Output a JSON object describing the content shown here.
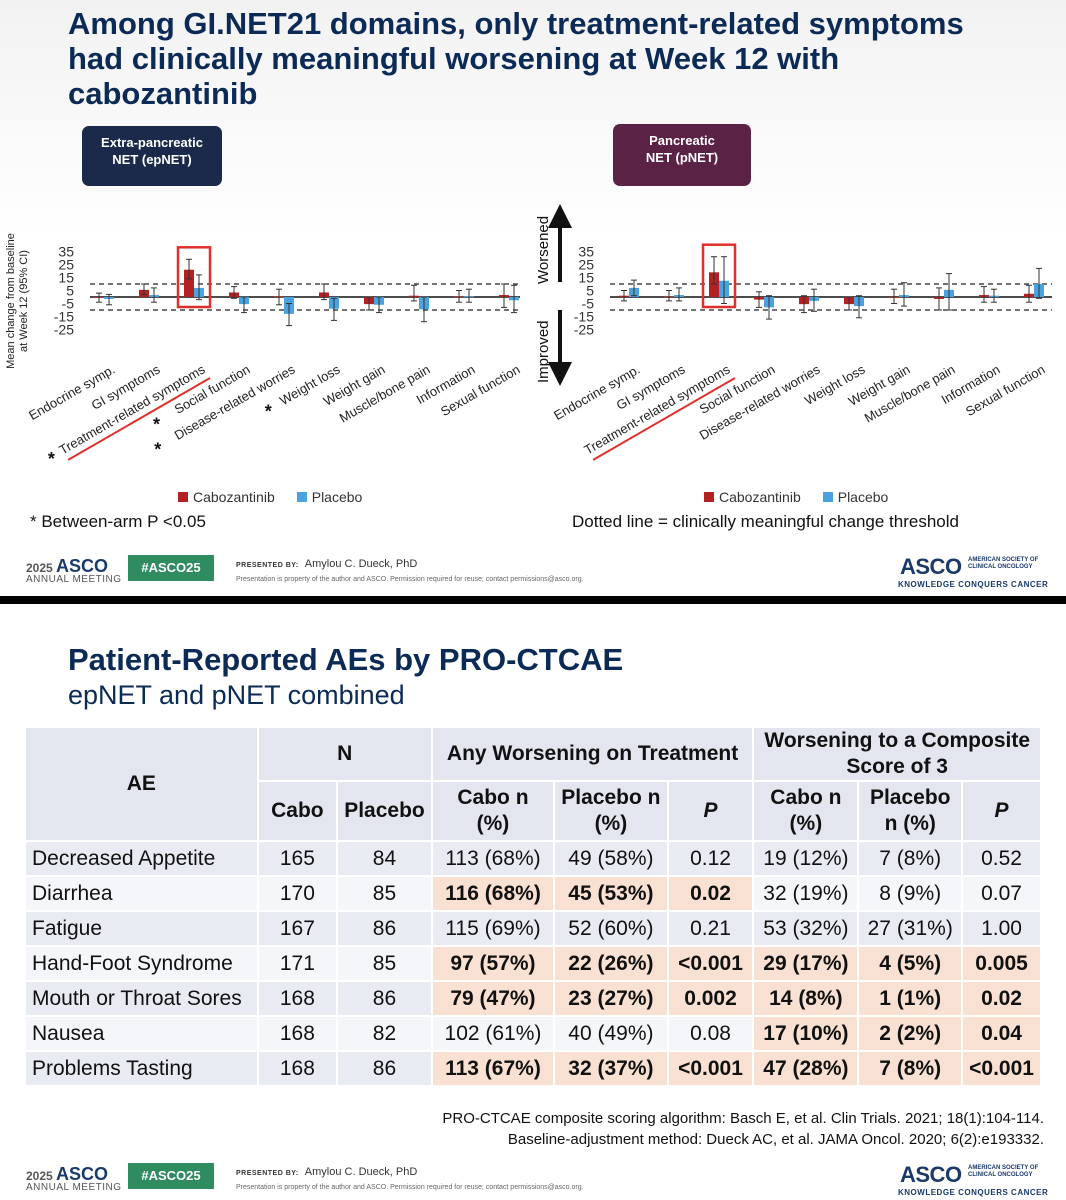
{
  "slide1": {
    "title": "Among GI.NET21 domains, only treatment-related symptoms had clinically meaningful worsening at Week 12 with cabozantinib",
    "ylabel_line1": "Mean change from baseline",
    "ylabel_line2": "at Week 12 (95% CI)",
    "worsened_label": "Worsened",
    "improved_label": "Improved",
    "legend_cabo": "Cabozantinib",
    "legend_placebo": "Placebo",
    "note_left": "* Between-arm P <0.05",
    "note_right": "Dotted line = clinically meaningful change threshold"
  },
  "chart_data": [
    {
      "type": "bar",
      "title": "Extra-pancreatic NET (epNET)",
      "title_line1": "Extra-pancreatic",
      "title_line2": "NET (epNET)",
      "categories": [
        "Endocrine symp.",
        "GI symptoms",
        "Treatment-related symptoms",
        "Social function",
        "Disease-related worries",
        "Weight loss",
        "Weight gain",
        "Muscle/bone pain",
        "Information",
        "Sexual function"
      ],
      "significant": [
        false,
        false,
        true,
        true,
        true,
        true,
        false,
        false,
        false,
        false
      ],
      "highlighted_category": "Treatment-related symptoms",
      "series": [
        {
          "name": "Cabozantinib",
          "color": "#b22222",
          "values": [
            -0.5,
            5.5,
            21,
            3.5,
            0.5,
            3.5,
            -5.5,
            1,
            0.5,
            1.5
          ],
          "ci_low": [
            -4,
            2,
            14,
            -1,
            -6,
            -2,
            -10,
            -3,
            -4,
            -8
          ],
          "ci_high": [
            3,
            10,
            29,
            8,
            6,
            10,
            0,
            9,
            5,
            10
          ]
        },
        {
          "name": "Placebo",
          "color": "#4aa3df",
          "values": [
            -1.5,
            1.5,
            7,
            -5.5,
            -13,
            -9,
            -6,
            -9.5,
            0.5,
            -2.5
          ],
          "ci_low": [
            -6,
            -4,
            -2,
            -12,
            -22,
            -18,
            -12,
            -19,
            -4,
            -12
          ],
          "ci_high": [
            2,
            7,
            17,
            0,
            -5,
            -1,
            0,
            0,
            6,
            9
          ]
        }
      ],
      "threshold": 10,
      "ylim": [
        -25,
        35
      ],
      "yticks": [
        35,
        25,
        15,
        5,
        -5,
        -15,
        -25
      ]
    },
    {
      "type": "bar",
      "title": "Pancreatic NET (pNET)",
      "title_line1": "Pancreatic",
      "title_line2": "NET (pNET)",
      "categories": [
        "Endocrine symp.",
        "GI symptoms",
        "Treatment-related symptoms",
        "Social function",
        "Disease-related worries",
        "Weight loss",
        "Weight gain",
        "Muscle/bone pain",
        "Information",
        "Sexual function"
      ],
      "highlighted_category": "Treatment-related symptoms",
      "series": [
        {
          "name": "Cabozantinib",
          "color": "#b22222",
          "values": [
            1,
            0.5,
            19,
            -2,
            -5.5,
            -5.5,
            -0.5,
            -1.5,
            1.5,
            2.5
          ],
          "ci_low": [
            -3,
            -3,
            10,
            -8,
            -12,
            -10,
            -5,
            -10,
            -4,
            -4
          ],
          "ci_high": [
            5,
            5,
            31,
            4,
            1,
            0,
            6,
            7,
            8,
            9
          ]
        },
        {
          "name": "Placebo",
          "color": "#4aa3df",
          "values": [
            7,
            1.5,
            12.5,
            -8,
            -3,
            -7,
            1.5,
            5.5,
            1,
            10
          ],
          "ci_low": [
            1,
            -3,
            -5,
            -17,
            -11,
            -16,
            -7,
            -10,
            -4,
            -1
          ],
          "ci_high": [
            13,
            7,
            31,
            1,
            6,
            1,
            11,
            18,
            6,
            22
          ]
        }
      ],
      "threshold": 10,
      "ylim": [
        -25,
        35
      ],
      "yticks": [
        35,
        25,
        15,
        5,
        -5,
        -15,
        -25
      ]
    }
  ],
  "slide2": {
    "title": "Patient-Reported AEs by PRO-CTCAE",
    "subtitle": "epNET and pNET combined",
    "headers": {
      "ae": "AE",
      "n": "N",
      "any": "Any Worsening on Treatment",
      "composite": "Worsening to a Composite Score of 3",
      "cabo": "Cabo",
      "placebo": "Placebo",
      "cabo_np": "Cabo n (%)",
      "placebo_np": "Placebo n (%)",
      "p": "P"
    },
    "rows": [
      {
        "ae": "Decreased Appetite",
        "n_cabo": "165",
        "n_pbo": "84",
        "any_cabo": "113 (68%)",
        "any_pbo": "49 (58%)",
        "any_p": "0.12",
        "comp_cabo": "19 (12%)",
        "comp_pbo": "7 (8%)",
        "comp_p": "0.52",
        "any_sig": false,
        "comp_sig": false
      },
      {
        "ae": "Diarrhea",
        "n_cabo": "170",
        "n_pbo": "85",
        "any_cabo": "116 (68%)",
        "any_pbo": "45 (53%)",
        "any_p": "0.02",
        "comp_cabo": "32 (19%)",
        "comp_pbo": "8 (9%)",
        "comp_p": "0.07",
        "any_sig": true,
        "comp_sig": false
      },
      {
        "ae": "Fatigue",
        "n_cabo": "167",
        "n_pbo": "86",
        "any_cabo": "115 (69%)",
        "any_pbo": "52 (60%)",
        "any_p": "0.21",
        "comp_cabo": "53 (32%)",
        "comp_pbo": "27 (31%)",
        "comp_p": "1.00",
        "any_sig": false,
        "comp_sig": false
      },
      {
        "ae": "Hand-Foot Syndrome",
        "n_cabo": "171",
        "n_pbo": "85",
        "any_cabo": "97 (57%)",
        "any_pbo": "22 (26%)",
        "any_p": "<0.001",
        "comp_cabo": "29 (17%)",
        "comp_pbo": "4 (5%)",
        "comp_p": "0.005",
        "any_sig": true,
        "comp_sig": true
      },
      {
        "ae": "Mouth or Throat Sores",
        "n_cabo": "168",
        "n_pbo": "86",
        "any_cabo": "79 (47%)",
        "any_pbo": "23 (27%)",
        "any_p": "0.002",
        "comp_cabo": "14 (8%)",
        "comp_pbo": "1 (1%)",
        "comp_p": "0.02",
        "any_sig": true,
        "comp_sig": true
      },
      {
        "ae": "Nausea",
        "n_cabo": "168",
        "n_pbo": "82",
        "any_cabo": "102 (61%)",
        "any_pbo": "40 (49%)",
        "any_p": "0.08",
        "comp_cabo": "17 (10%)",
        "comp_pbo": "2 (2%)",
        "comp_p": "0.04",
        "any_sig": false,
        "comp_sig": true
      },
      {
        "ae": "Problems Tasting",
        "n_cabo": "168",
        "n_pbo": "86",
        "any_cabo": "113 (67%)",
        "any_pbo": "32 (37%)",
        "any_p": "<0.001",
        "comp_cabo": "47 (28%)",
        "comp_pbo": "7 (8%)",
        "comp_p": "<0.001",
        "any_sig": true,
        "comp_sig": true
      }
    ],
    "ref1": "PRO-CTCAE composite scoring algorithm:  Basch E, et al. Clin Trials. 2021; 18(1):104-114.",
    "ref2": "Baseline-adjustment method:  Dueck AC, et al. JAMA Oncol. 2020; 6(2):e193332."
  },
  "footer": {
    "year": "2025",
    "asco": "ASCO",
    "meeting": "ANNUAL MEETING",
    "hashtag": "#ASCO25",
    "presented_by": "PRESENTED BY:",
    "presenter": "Amylou C. Dueck, PhD",
    "permission": "Presentation is property of the author and ASCO. Permission required for reuse; contact permissions@asco.org.",
    "org": "AMERICAN SOCIETY OF CLINICAL ONCOLOGY",
    "tagline": "KNOWLEDGE CONQUERS CANCER"
  }
}
